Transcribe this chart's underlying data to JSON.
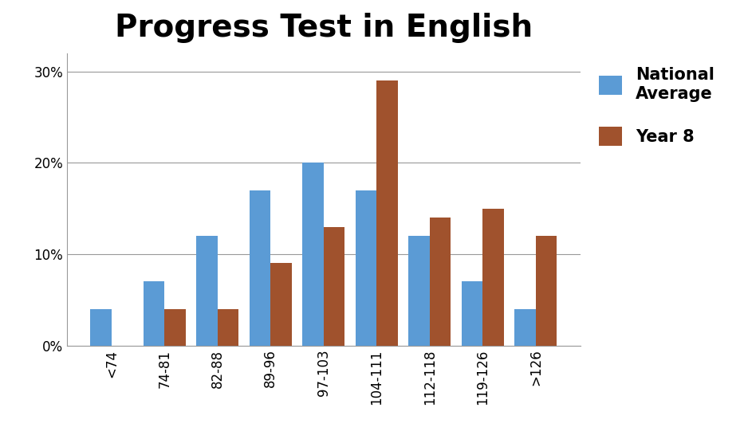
{
  "title": "Progress Test in English",
  "categories": [
    "<74",
    "74-81",
    "82-88",
    "89-96",
    "97-103",
    "104-111",
    "112-118",
    "119-126",
    ">126"
  ],
  "national_average": [
    0.04,
    0.07,
    0.12,
    0.17,
    0.2,
    0.17,
    0.12,
    0.07,
    0.04
  ],
  "year8": [
    0.0,
    0.04,
    0.04,
    0.09,
    0.13,
    0.29,
    0.14,
    0.15,
    0.12
  ],
  "bar_color_national": "#5B9BD5",
  "bar_color_year8": "#A0522D",
  "legend_labels": [
    "National\nAverage",
    "Year 8"
  ],
  "ylim": [
    0,
    0.32
  ],
  "yticks": [
    0.0,
    0.1,
    0.2,
    0.3
  ],
  "ytick_labels": [
    "0%",
    "10%",
    "20%",
    "30%"
  ],
  "title_fontsize": 28,
  "tick_fontsize": 12,
  "legend_fontsize": 15,
  "background_color": "#ffffff",
  "grid_color": "#999999"
}
